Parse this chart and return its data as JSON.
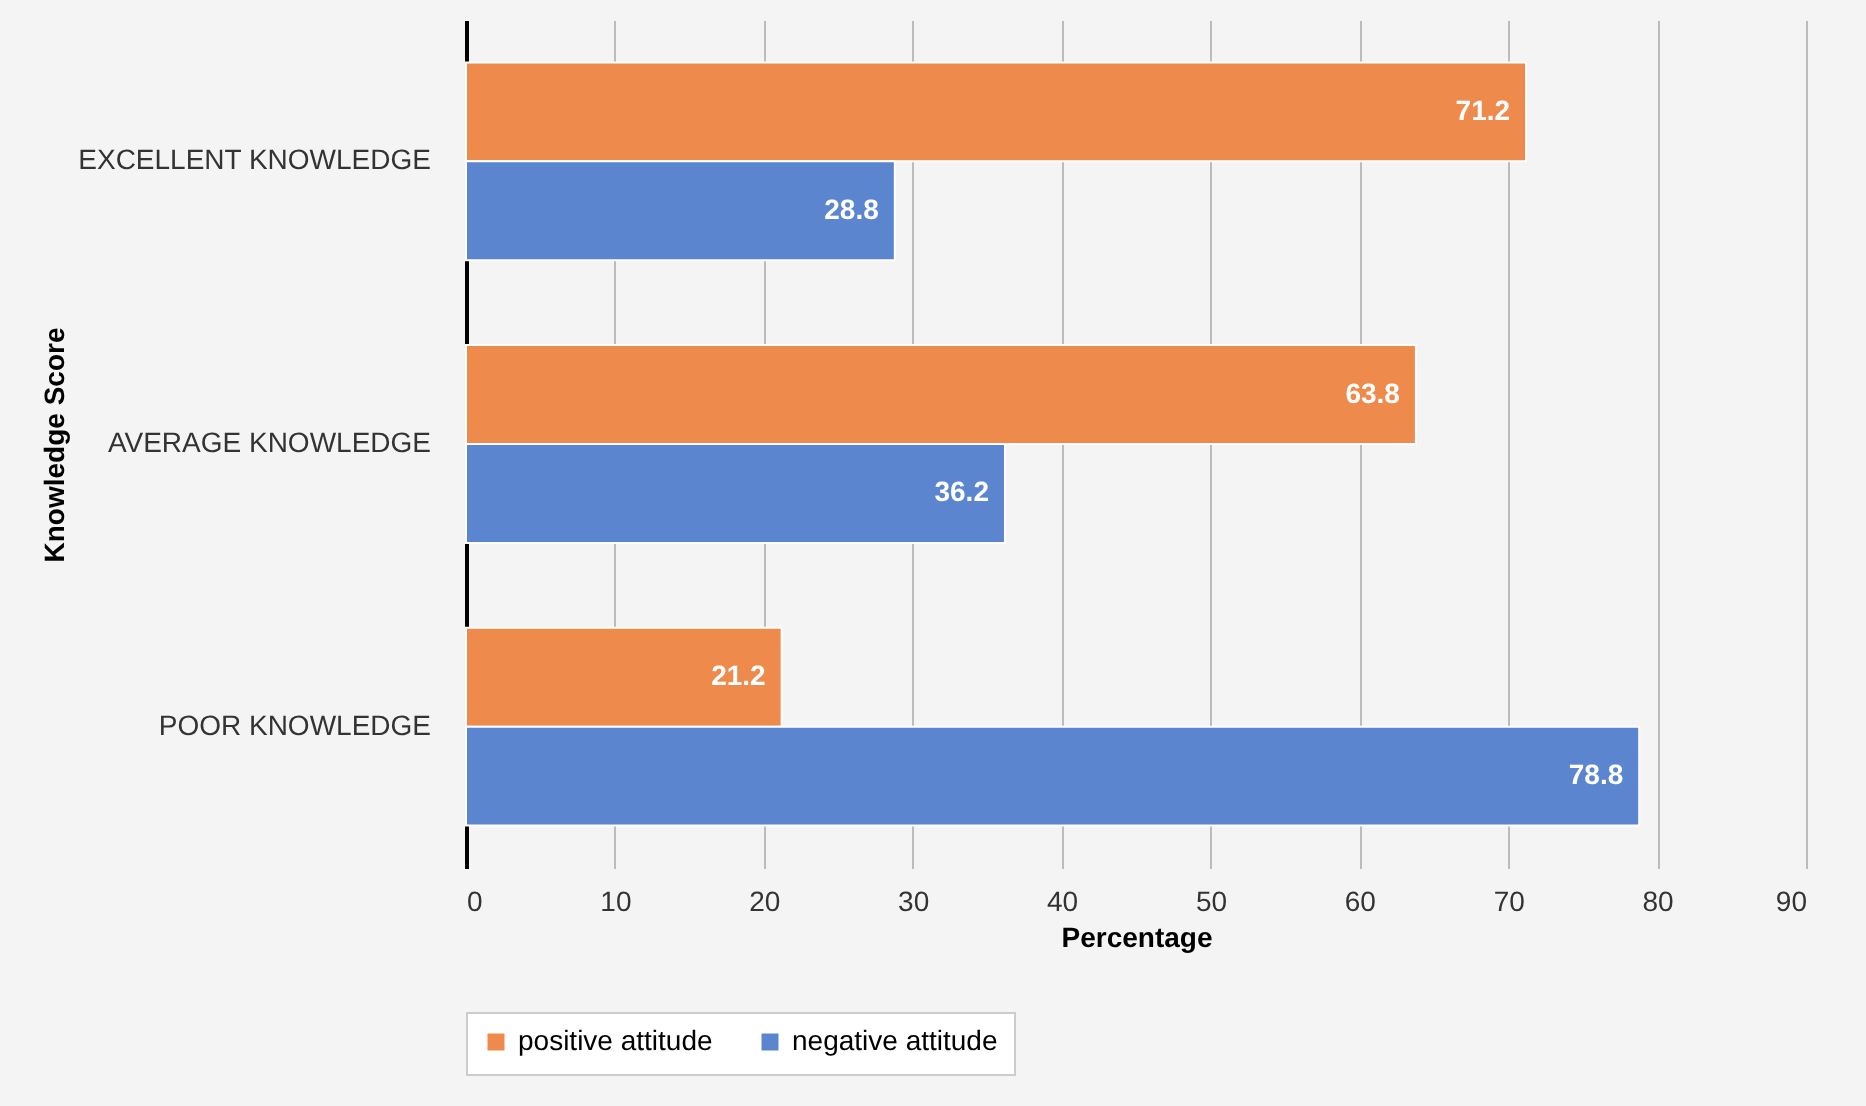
{
  "chart_data": {
    "type": "bar",
    "orientation": "horizontal",
    "xlabel": "Percentage",
    "ylabel": "Knowledge Score",
    "categories": [
      "EXCELLENT KNOWLEDGE",
      "AVERAGE KNOWLEDGE",
      "POOR KNOWLEDGE"
    ],
    "series": [
      {
        "name": "positive attitude",
        "color": "#ee8a4c",
        "values": [
          71.2,
          63.8,
          21.2
        ]
      },
      {
        "name": "negative attitude",
        "color": "#5b85cf",
        "values": [
          28.8,
          36.2,
          78.8
        ]
      }
    ],
    "xlim": [
      0,
      90
    ],
    "xticks": [
      0,
      10,
      20,
      30,
      40,
      50,
      60,
      70,
      80,
      90
    ],
    "grid": "x",
    "legend": "bottom",
    "data_labels": true
  }
}
